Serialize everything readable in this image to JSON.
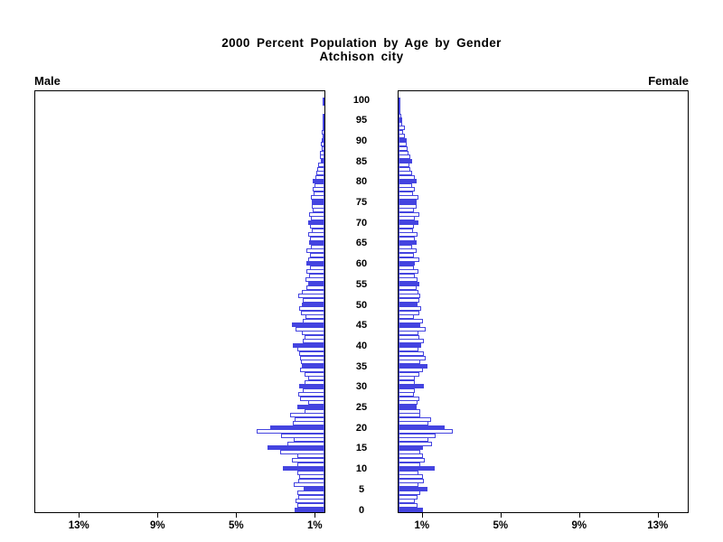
{
  "title_line1": "2000 Percent Population by Age by Gender",
  "title_line2": "Atchison city",
  "left_panel_label": "Male",
  "right_panel_label": "Female",
  "chart_data": {
    "type": "bar",
    "subtype": "population-pyramid",
    "title": "2000 Percent Population by Age by Gender",
    "subtitle": "Atchison city",
    "unit": "percent of population",
    "age_min": 0,
    "age_max": 100,
    "age_tick_step": 5,
    "age_tick_labels": [
      "100",
      "95",
      "90",
      "85",
      "80",
      "75",
      "70",
      "65",
      "60",
      "55",
      "50",
      "45",
      "40",
      "35",
      "30",
      "25",
      "20",
      "15",
      "10",
      "5",
      "0"
    ],
    "x_axis": {
      "left_tick_labels": [
        "13%",
        "9%",
        "5%",
        "1%"
      ],
      "left_tick_values": [
        13,
        9,
        5,
        1
      ],
      "right_tick_labels": [
        "1%",
        "5%",
        "9%",
        "13%"
      ],
      "right_tick_values": [
        1,
        5,
        9,
        13
      ],
      "max_pct": 14.8,
      "grid": false
    },
    "highlight_every_5_years": true,
    "colors": {
      "bar_outline": "#4444e0",
      "bar_fill_highlight": "#4444e0",
      "bar_fill_normal": "#ffffff",
      "axis": "#000000",
      "text": "#000000"
    },
    "series": [
      {
        "name": "Male",
        "side": "left",
        "ages_0_to_100_pct": [
          1.5,
          1.4,
          1.45,
          1.35,
          1.4,
          1.05,
          1.55,
          1.35,
          1.3,
          1.4,
          2.1,
          1.4,
          1.65,
          1.4,
          2.25,
          2.9,
          1.9,
          1.55,
          2.2,
          3.45,
          2.75,
          1.6,
          1.5,
          1.75,
          1.0,
          1.4,
          0.85,
          1.25,
          1.35,
          1.1,
          1.3,
          1.0,
          0.85,
          1.0,
          1.25,
          1.15,
          1.2,
          1.25,
          1.3,
          1.4,
          1.6,
          1.1,
          1.0,
          1.15,
          1.45,
          1.65,
          1.1,
          0.95,
          1.2,
          1.3,
          1.15,
          1.1,
          1.35,
          1.15,
          0.9,
          0.85,
          0.95,
          0.8,
          0.9,
          0.75,
          0.9,
          0.85,
          0.75,
          0.9,
          0.7,
          0.8,
          0.75,
          0.85,
          0.65,
          0.75,
          0.85,
          0.7,
          0.8,
          0.6,
          0.65,
          0.65,
          0.7,
          0.55,
          0.6,
          0.5,
          0.6,
          0.45,
          0.4,
          0.35,
          0.3,
          0.2,
          0.25,
          0.25,
          0.15,
          0.2,
          0.15,
          0.1,
          0.15,
          0.1,
          0.1,
          0.05,
          0.1,
          0.0,
          0.0,
          0.05,
          0.08
        ]
      },
      {
        "name": "Female",
        "side": "right",
        "ages_0_to_100_pct": [
          1.25,
          0.95,
          0.85,
          0.95,
          1.1,
          1.45,
          1.0,
          1.3,
          1.25,
          1.0,
          1.85,
          1.1,
          1.35,
          1.25,
          1.1,
          1.25,
          1.7,
          1.5,
          1.9,
          2.75,
          2.35,
          1.5,
          1.65,
          1.1,
          1.1,
          0.9,
          0.95,
          1.05,
          0.8,
          0.85,
          1.3,
          0.85,
          0.85,
          1.05,
          1.25,
          1.45,
          1.1,
          1.4,
          1.3,
          1.0,
          1.15,
          1.3,
          1.05,
          1.0,
          1.4,
          1.1,
          1.25,
          0.8,
          1.05,
          1.15,
          0.95,
          1.05,
          1.1,
          1.0,
          0.9,
          1.05,
          0.95,
          0.85,
          1.0,
          0.8,
          0.85,
          1.05,
          0.8,
          0.9,
          0.7,
          0.9,
          0.85,
          0.95,
          0.75,
          0.8,
          1.0,
          0.85,
          1.05,
          0.8,
          0.9,
          0.9,
          1.0,
          0.75,
          0.85,
          0.7,
          0.9,
          0.85,
          0.7,
          0.6,
          0.55,
          0.7,
          0.6,
          0.5,
          0.45,
          0.4,
          0.4,
          0.3,
          0.25,
          0.3,
          0.2,
          0.2,
          0.15,
          0.1,
          0.1,
          0.05,
          0.1
        ]
      }
    ]
  }
}
